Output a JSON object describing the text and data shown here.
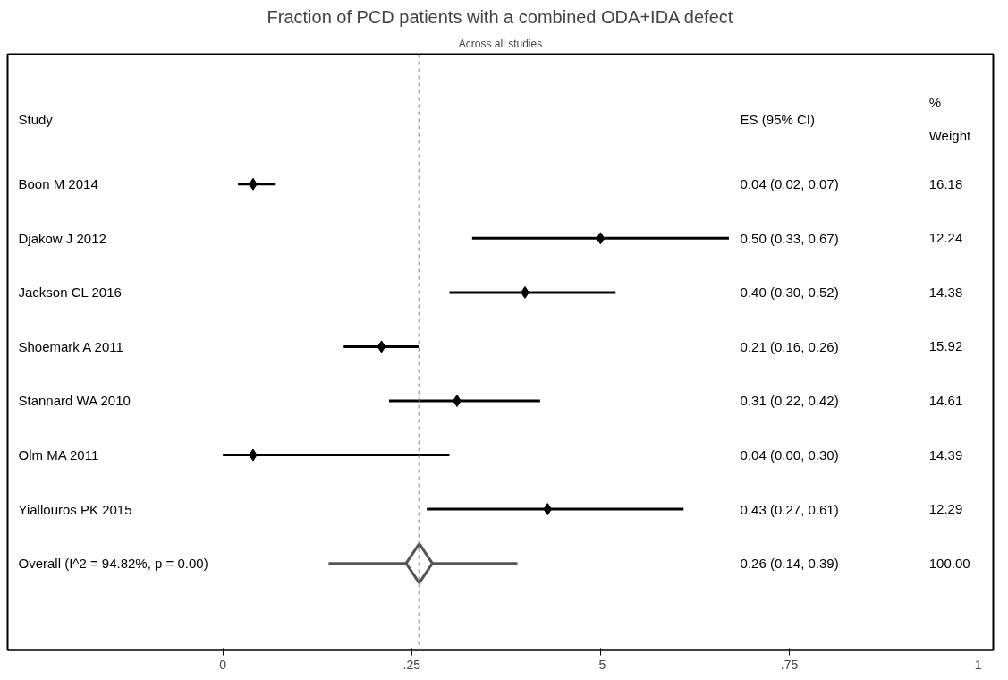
{
  "chart_data": {
    "type": "scatter",
    "orientation": "horizontal",
    "title": "Fraction of PCD patients with a combined ODA+IDA defect",
    "subtitle": "Across all studies",
    "categories": [
      "Boon M 2014",
      "Djakow J 2012",
      "Jackson CL 2016",
      "Shoemark A 2011",
      "Stannard WA 2010",
      "Olm MA 2011",
      "Yiallouros PK 2015",
      "Overall  (I^2 = 94.82%, p = 0.00)"
    ],
    "series": [
      {
        "marker": "diamond",
        "color": "#000000",
        "values": [
          0.04,
          0.5,
          0.4,
          0.21,
          0.31,
          0.04,
          0.43,
          null
        ],
        "errors": [
          [
            0.02,
            0.07
          ],
          [
            0.33,
            0.67
          ],
          [
            0.3,
            0.52
          ],
          [
            0.16,
            0.26
          ],
          [
            0.22,
            0.42
          ],
          [
            0.0,
            0.3
          ],
          [
            0.27,
            0.61
          ],
          null
        ]
      },
      {
        "marker": "diamond",
        "color": "#555555",
        "values": [
          null,
          null,
          null,
          null,
          null,
          null,
          null,
          0.26
        ],
        "errors": [
          null,
          null,
          null,
          null,
          null,
          null,
          null,
          [
            0.14,
            0.39
          ]
        ]
      }
    ],
    "annotations": [
      "Study",
      "ES (95% CI)",
      "%\nWeight",
      "0.04 (0.02, 0.07)",
      "0.50 (0.33, 0.67)",
      "0.40 (0.30, 0.52)",
      "0.21 (0.16, 0.26)",
      "0.31 (0.22, 0.42)",
      "0.04 (0.00, 0.30)",
      "0.43 (0.27, 0.61)",
      "0.26 (0.14, 0.39)",
      "16.18",
      "12.24",
      "14.38",
      "15.92",
      "14.61",
      "14.39",
      "12.29",
      "100.00"
    ],
    "ref_lines": [
      {
        "axis": "x",
        "value": 0.26,
        "color": "#888888",
        "line_style": "dashed"
      }
    ],
    "xlim": [
      -0.285,
      1.02
    ],
    "xticks": [
      {
        "value": 0,
        "label": "0"
      },
      {
        "value": 0.25,
        "label": ".25"
      },
      {
        "value": 0.5,
        "label": ".5"
      },
      {
        "value": 0.75,
        "label": ".75"
      },
      {
        "value": 1,
        "label": "1"
      }
    ],
    "tick_labels": "x",
    "grid": false
  }
}
